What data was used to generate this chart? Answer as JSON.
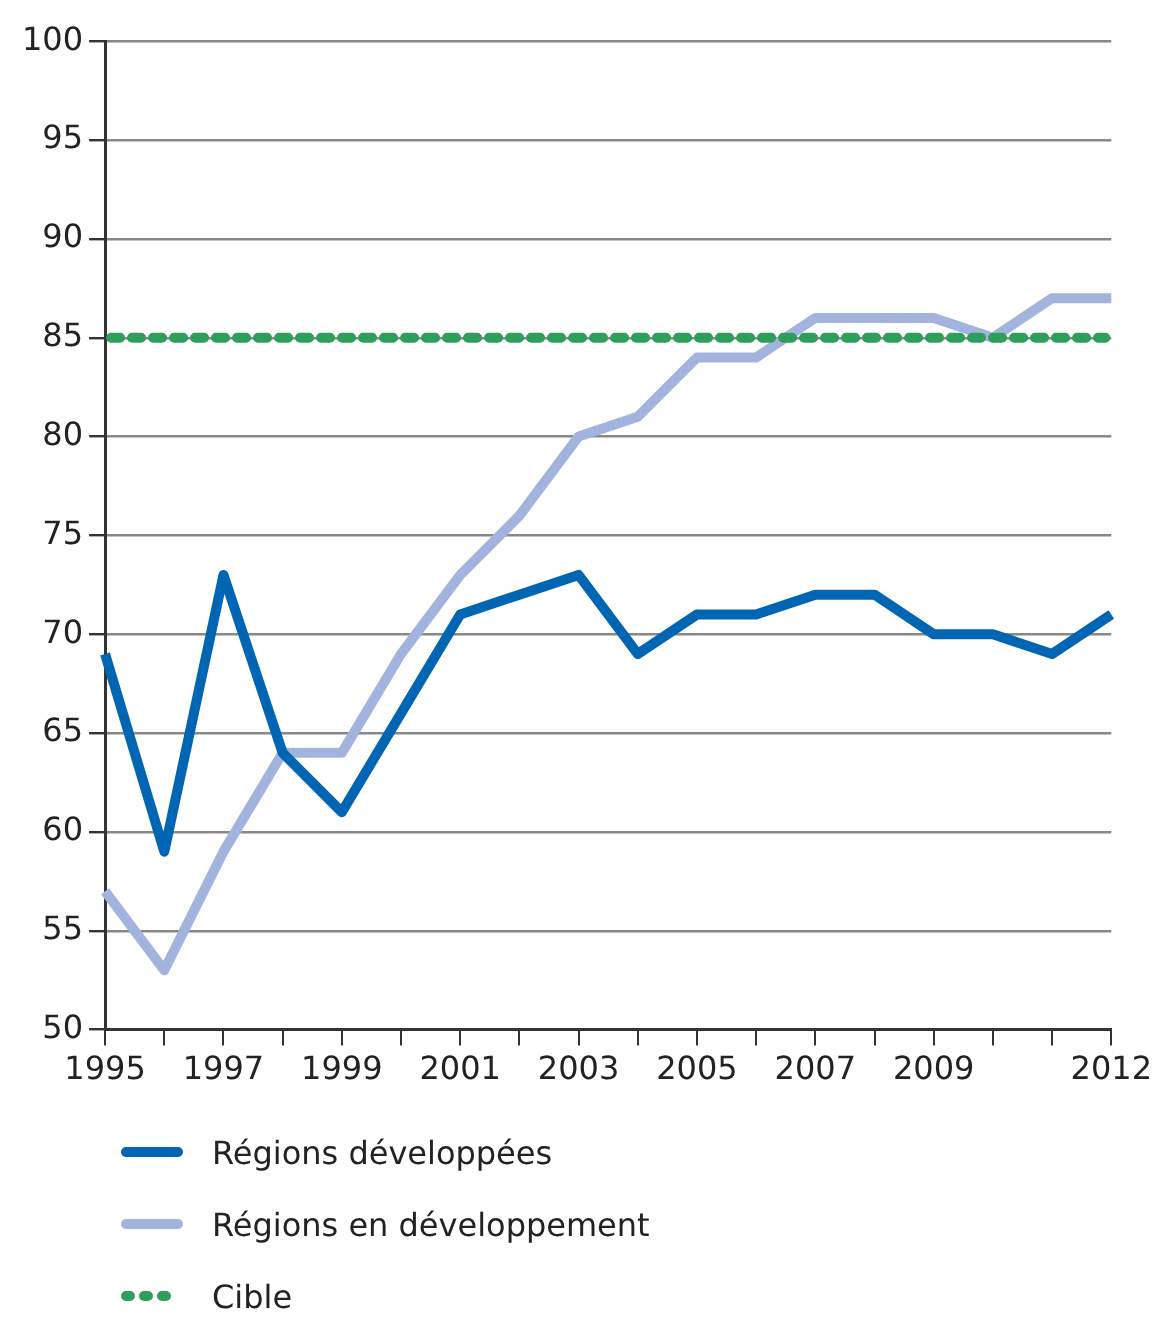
{
  "chart_data": {
    "type": "line",
    "categories": [
      "1995",
      null,
      "1997",
      null,
      "1999",
      null,
      "2001",
      null,
      "2003",
      null,
      "2005",
      null,
      "2007",
      null,
      "2009",
      null,
      null,
      "2012"
    ],
    "series": [
      {
        "name": "Régions développées",
        "color": "#0066b3",
        "values": [
          69,
          59,
          73,
          64,
          61,
          66,
          71,
          72,
          73,
          69,
          71,
          71,
          72,
          72,
          70,
          70,
          69,
          71
        ]
      },
      {
        "name": "Régions en développement",
        "color": "#a2b4de",
        "values": [
          57,
          53,
          59,
          64,
          64,
          69,
          73,
          76,
          80,
          81,
          84,
          84,
          86,
          86,
          86,
          85,
          87,
          87
        ]
      }
    ],
    "ref_lines": [
      {
        "axis": "y",
        "value": 85,
        "label": "Cible",
        "color": "#2e9e5b",
        "line_style": "dotted"
      }
    ],
    "ylim": [
      50,
      100
    ],
    "yticks": [
      50,
      55,
      60,
      65,
      70,
      75,
      80,
      85,
      90,
      95,
      100
    ],
    "grid": "y",
    "legend": "bottom",
    "marker": "none",
    "line_style": "solid"
  }
}
